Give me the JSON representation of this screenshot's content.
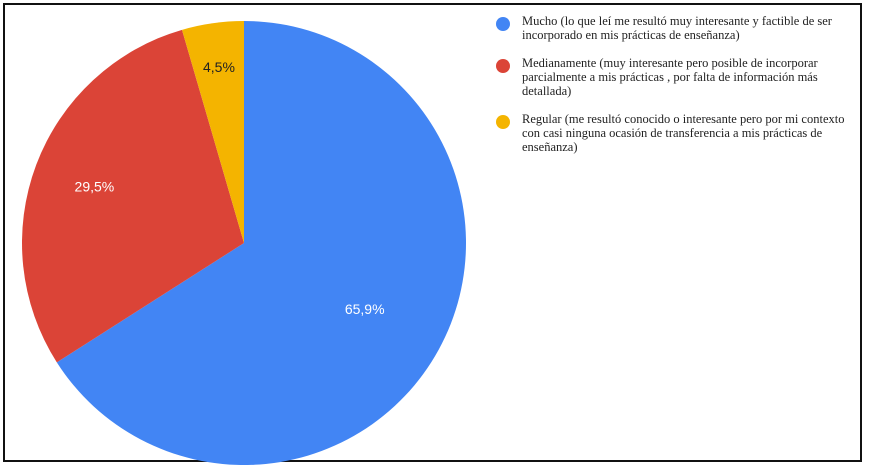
{
  "chart_data": {
    "type": "pie",
    "categories": [
      "Mucho (lo que leí me resultó muy interesante y factible de ser incorporado en mis prácticas de enseñanza)",
      "Medianamente (muy interesante pero posible de incorporar parcialmente a mis prácticas , por falta de información más detallada)",
      "Regular (me resultó conocido o interesante pero por mi contexto con casi ninguna ocasión de transferencia a mis prácticas de enseñanza)"
    ],
    "values": [
      65.9,
      29.5,
      4.5
    ],
    "data_labels": [
      "65,9%",
      "29,5%",
      "4,5%"
    ],
    "colors": [
      "#4285F4",
      "#DB4437",
      "#F4B400"
    ],
    "label_colors": [
      "#ffffff",
      "#ffffff",
      "#222222"
    ],
    "start_angle": "12 o'clock",
    "direction": "clockwise",
    "legend_position": "right",
    "title": ""
  }
}
